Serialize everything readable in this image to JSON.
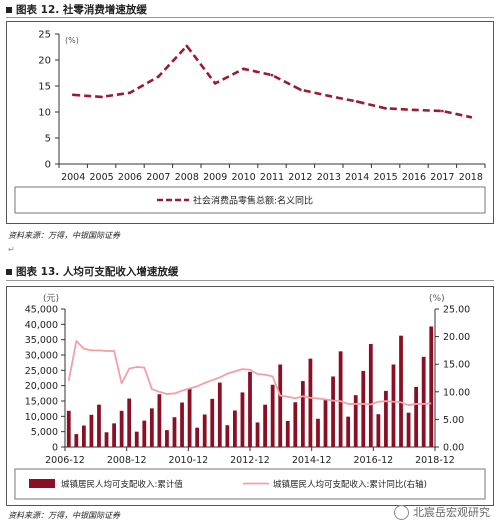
{
  "figure1": {
    "title": "图表 12. 社零消费增速放缓",
    "source": "资料来源：万得，中银国际证券",
    "chart_data": {
      "type": "line",
      "title": "图表 12. 社零消费增速放缓",
      "x": [
        "2004",
        "2005",
        "2006",
        "2007",
        "2008",
        "2009",
        "2010",
        "2011",
        "2012",
        "2013",
        "2014",
        "2015",
        "2016",
        "2017",
        "2018"
      ],
      "series": [
        {
          "name": "社会消费品零售总额:名义同比",
          "values": [
            13.3,
            12.9,
            13.7,
            16.8,
            22.7,
            15.5,
            18.3,
            17.1,
            14.3,
            13.1,
            12.0,
            10.7,
            10.4,
            10.2,
            9.0
          ],
          "color": "#9b1b30",
          "dash": true
        }
      ],
      "yunit": "(%)",
      "ylim": [
        0,
        25
      ],
      "yticks": [
        0,
        5,
        10,
        15,
        20,
        25
      ],
      "grid": false,
      "legend": "bottom"
    }
  },
  "figure2": {
    "title": "图表 13. 人均可支配收入增速放缓",
    "source": "资料来源：万得，中银国际证券",
    "watermark": "北宸岳宏观研究",
    "chart_data": {
      "type": "bar",
      "title": "图表 13. 人均可支配收入增速放缓",
      "x_tick_labels": [
        "2006-12",
        "2008-12",
        "2010-12",
        "2012-12",
        "2014-12",
        "2016-12",
        "2018-12"
      ],
      "left_unit": "(元)",
      "right_unit": "(%)",
      "ylim_left": [
        0,
        45000
      ],
      "yticks_left": [
        "0",
        "5,000",
        "10,000",
        "15,000",
        "20,000",
        "25,000",
        "30,000",
        "35,000",
        "40,000",
        "45,000"
      ],
      "ylim_right": [
        0,
        25
      ],
      "yticks_right": [
        "0.00",
        "5.00",
        "10.00",
        "15.00",
        "20.00",
        "25.00"
      ],
      "series": [
        {
          "name": "城镇居民人均可支配收入:累计值",
          "axis": "left",
          "type": "bar",
          "color": "#8b0f24",
          "values": [
            11800,
            4200,
            7000,
            10500,
            13800,
            4800,
            7700,
            11800,
            15800,
            5000,
            8600,
            12600,
            17200,
            5500,
            9700,
            14500,
            19100,
            6300,
            10600,
            15700,
            21000,
            7100,
            11900,
            17800,
            24500,
            8000,
            13800,
            20300,
            26900,
            8500,
            14600,
            21500,
            28800,
            9200,
            15700,
            23000,
            31200,
            9900,
            16900,
            24800,
            33600,
            10700,
            18300,
            26900,
            36300,
            11200,
            19600,
            29400,
            39300
          ]
        },
        {
          "name": "城镇居民人均可支配收入:累计同比(右轴)",
          "axis": "right",
          "type": "line",
          "color": "#f2a0a6",
          "values": [
            12.0,
            19.2,
            17.8,
            17.5,
            17.5,
            17.4,
            17.4,
            11.5,
            14.2,
            14.5,
            14.4,
            10.5,
            10.0,
            9.6,
            9.7,
            10.2,
            10.6,
            11.0,
            11.6,
            12.1,
            12.6,
            13.3,
            13.7,
            14.1,
            14.0,
            13.2,
            13.1,
            12.8,
            9.3,
            9.1,
            8.8,
            9.2,
            8.9,
            8.8,
            8.6,
            8.4,
            8.3,
            7.8,
            7.8,
            7.8,
            7.7,
            8.2,
            8.3,
            8.2,
            8.1,
            7.6,
            7.8,
            7.8,
            7.9
          ]
        }
      ],
      "legend": "bottom"
    }
  }
}
